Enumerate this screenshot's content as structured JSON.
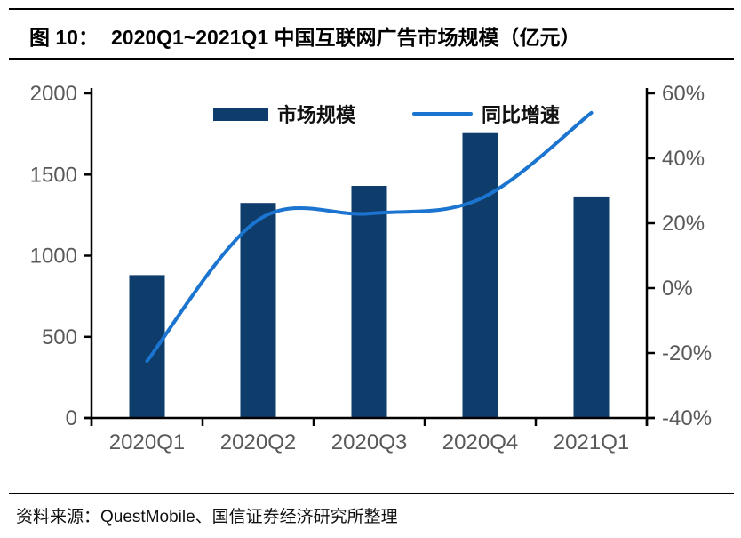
{
  "header": {
    "figure_label": "图 10：",
    "title": "2020Q1~2021Q1 中国互联网广告市场规模（亿元）"
  },
  "legend": {
    "items": [
      {
        "label": "市场规模",
        "series": "bar"
      },
      {
        "label": "同比增速",
        "series": "line"
      }
    ]
  },
  "footer": {
    "source": "资料来源：QuestMobile、国信证券经济研究所整理"
  },
  "colors": {
    "bar": "#0e3c6b",
    "line": "#1b74cf",
    "axis": "#000000",
    "tick_text": "#595959",
    "title_text": "#000000"
  },
  "chart_data": {
    "type": "bar+line",
    "title": "2020Q1~2021Q1 中国互联网广告市场规模（亿元）",
    "categories": [
      "2020Q1",
      "2020Q2",
      "2020Q3",
      "2020Q4",
      "2021Q1"
    ],
    "series": [
      {
        "name": "市场规模",
        "type": "bar",
        "axis": "left",
        "unit": "亿元",
        "values": [
          880,
          1325,
          1430,
          1755,
          1365
        ]
      },
      {
        "name": "同比增速",
        "type": "line",
        "axis": "right",
        "unit": "%",
        "values": [
          -22.5,
          21,
          23,
          27.5,
          54
        ]
      }
    ],
    "left_axis": {
      "range": [
        0,
        2000
      ],
      "ticks": [
        0,
        500,
        1000,
        1500,
        2000
      ]
    },
    "right_axis": {
      "range": [
        -40,
        60
      ],
      "ticks": [
        -40,
        -20,
        0,
        20,
        40,
        60
      ],
      "suffix": "%"
    },
    "grid": false,
    "legend_position": "top-center"
  }
}
